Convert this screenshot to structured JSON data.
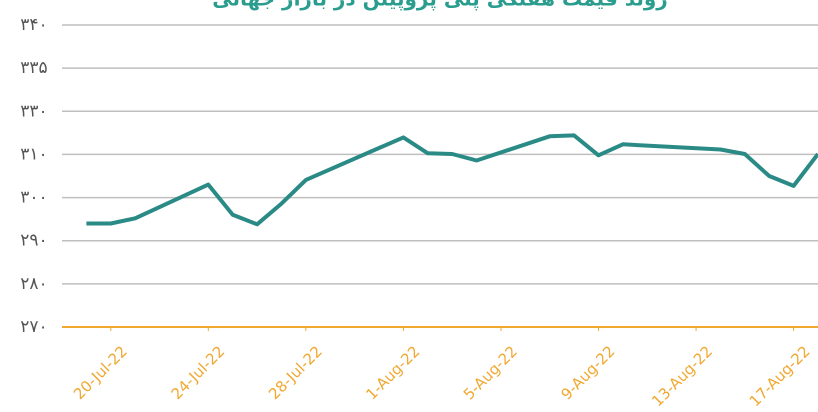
{
  "chart_data": {
    "type": "line",
    "title": "روند قیمت هفتگی پلی پروپیلن در بازار جهانی",
    "x": [
      "2022-07-19",
      "2022-07-20",
      "2022-07-21",
      "2022-07-24",
      "2022-07-25",
      "2022-07-26",
      "2022-07-27",
      "2022-07-28",
      "2022-08-01",
      "2022-08-02",
      "2022-08-03",
      "2022-08-04",
      "2022-08-07",
      "2022-08-08",
      "2022-08-09",
      "2022-08-10",
      "2022-08-14",
      "2022-08-15",
      "2022-08-16",
      "2022-08-17",
      "2022-08-18"
    ],
    "series": [
      {
        "name": "price",
        "color": "#2a8a86",
        "values": [
          294.0,
          294.0,
          295.2,
          303.0,
          296.0,
          293.8,
          298.6,
          304.1,
          317.9,
          310.5,
          310.2,
          308.6,
          318.4,
          318.8,
          309.8,
          314.7,
          312.3,
          310.2,
          305.0,
          302.7,
          310.2
        ]
      }
    ],
    "xlim": [
      "2022-07-18",
      "2022-08-18"
    ],
    "xticks": [
      {
        "value": "2022-07-20",
        "label": "20-Jul-22"
      },
      {
        "value": "2022-07-24",
        "label": "24-Jul-22"
      },
      {
        "value": "2022-07-28",
        "label": "28-Jul-22"
      },
      {
        "value": "2022-08-01",
        "label": "1-Aug-22"
      },
      {
        "value": "2022-08-05",
        "label": "5-Aug-22"
      },
      {
        "value": "2022-08-09",
        "label": "9-Aug-22"
      },
      {
        "value": "2022-08-13",
        "label": "13-Aug-22"
      },
      {
        "value": "2022-08-17",
        "label": "17-Aug-22"
      }
    ],
    "ylim": [
      270,
      340
    ],
    "yticks": [
      {
        "value": 340,
        "label": "۳۴۰"
      },
      {
        "value": 335,
        "label": "۳۳۵"
      },
      {
        "value": 330,
        "label": "۳۳۰"
      },
      {
        "value": 310,
        "label": "۳۱۰"
      },
      {
        "value": 300,
        "label": "۳۰۰"
      },
      {
        "value": 290,
        "label": "۲۹۰"
      },
      {
        "value": 280,
        "label": "۲۸۰"
      },
      {
        "value": 270,
        "label": "۲۷۰"
      }
    ],
    "grid": true,
    "axis_color": "#f0a830",
    "tick_label_color": "#f0a830"
  }
}
